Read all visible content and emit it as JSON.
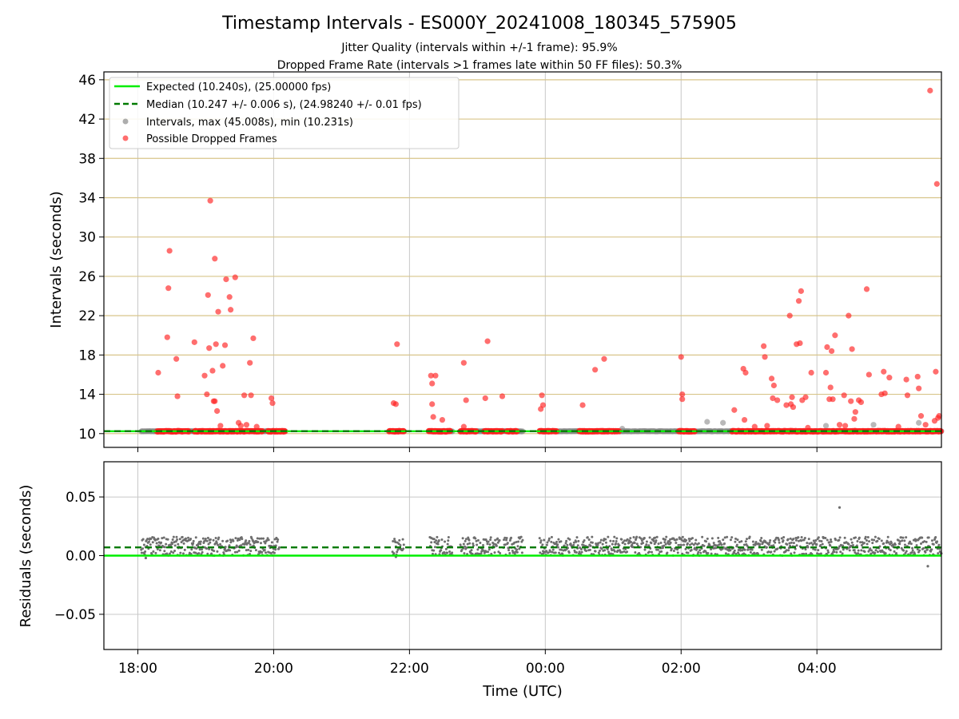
{
  "figure": {
    "title": "Timestamp Intervals - ES000Y_20241008_180345_575905",
    "subtitle1": "Jitter Quality (intervals within +/-1 frame): 95.9%",
    "subtitle2": "Dropped Frame Rate (intervals >1 frames late within 50 FF files): 50.3%",
    "xlabel": "Time (UTC)"
  },
  "chart_data": [
    {
      "type": "scatter",
      "panel": "top",
      "ylabel": "Intervals (seconds)",
      "xlim": [
        "17:30",
        "05:50"
      ],
      "ylim": [
        8.6,
        46.8
      ],
      "yticks": [
        10,
        14,
        18,
        22,
        26,
        30,
        34,
        38,
        42,
        46
      ],
      "xtick_labels": [
        "18:00",
        "20:00",
        "22:00",
        "00:00",
        "02:00",
        "04:00"
      ],
      "grid": "on",
      "hgrid_color": "#d8c58a",
      "legend_placement": "upper left",
      "legend": [
        {
          "label": "Expected (10.240s), (25.00000 fps)",
          "style": "solid-line",
          "color": "#00ee00"
        },
        {
          "label": "Median (10.247 +/- 0.006 s), (24.98240 +/- 0.01 fps)",
          "style": "dashed-line",
          "color": "#007a00"
        },
        {
          "label": "Intervals, max (45.008s), min (10.231s)",
          "style": "marker",
          "color": "#8a8a8a"
        },
        {
          "label": "Possible Dropped Frames",
          "style": "marker",
          "color": "#ff2020"
        }
      ],
      "expected": 10.24,
      "median": 10.247,
      "series": [
        {
          "name": "Intervals, max (45.008s), min (10.231s)",
          "color": "#8a8a8a",
          "segments": [
            [
              "18:03",
              "20:10"
            ],
            [
              "21:45",
              "21:55"
            ],
            [
              "22:18",
              "22:38"
            ],
            [
              "22:45",
              "23:20"
            ],
            [
              "23:23",
              "23:40"
            ],
            [
              "23:55",
              "05:50"
            ]
          ],
          "value": 10.24,
          "outliers": [
            {
              "x": "01:08",
              "y": 10.5
            },
            {
              "x": "02:23",
              "y": 11.2
            },
            {
              "x": "02:37",
              "y": 11.1
            },
            {
              "x": "04:08",
              "y": 10.8
            },
            {
              "x": "04:50",
              "y": 10.9
            },
            {
              "x": "05:30",
              "y": 11.1
            }
          ]
        },
        {
          "name": "Possible Dropped Frames",
          "color": "#ff2020",
          "base_value": 10.24,
          "base_segments": [
            [
              "18:17",
              "18:45"
            ],
            [
              "18:50",
              "19:50"
            ],
            [
              "19:55",
              "20:10"
            ],
            [
              "21:42",
              "21:55"
            ],
            [
              "22:17",
              "22:36"
            ],
            [
              "22:45",
              "22:59"
            ],
            [
              "23:06",
              "23:22"
            ],
            [
              "23:26",
              "23:35"
            ],
            [
              "23:55",
              "24:10"
            ],
            [
              "24:30",
              "25:05"
            ],
            [
              "25:58",
              "26:12"
            ],
            [
              "26:45",
              "29:50"
            ]
          ],
          "points": [
            {
              "x": "18:18",
              "y": 16.2
            },
            {
              "x": "18:26",
              "y": 19.8
            },
            {
              "x": "18:27",
              "y": 24.8
            },
            {
              "x": "18:28",
              "y": 28.6
            },
            {
              "x": "18:34",
              "y": 17.6
            },
            {
              "x": "18:35",
              "y": 13.8
            },
            {
              "x": "18:50",
              "y": 19.3
            },
            {
              "x": "18:59",
              "y": 15.9
            },
            {
              "x": "19:01",
              "y": 14.0
            },
            {
              "x": "19:02",
              "y": 24.1
            },
            {
              "x": "19:03",
              "y": 18.7
            },
            {
              "x": "19:04",
              "y": 33.7
            },
            {
              "x": "19:06",
              "y": 16.4
            },
            {
              "x": "19:07",
              "y": 13.3
            },
            {
              "x": "19:08",
              "y": 27.8
            },
            {
              "x": "19:08",
              "y": 13.3
            },
            {
              "x": "19:09",
              "y": 19.1
            },
            {
              "x": "19:10",
              "y": 12.3
            },
            {
              "x": "19:11",
              "y": 22.4
            },
            {
              "x": "19:13",
              "y": 10.8
            },
            {
              "x": "19:15",
              "y": 16.9
            },
            {
              "x": "19:17",
              "y": 19.0
            },
            {
              "x": "19:18",
              "y": 25.7
            },
            {
              "x": "19:21",
              "y": 23.9
            },
            {
              "x": "19:22",
              "y": 22.6
            },
            {
              "x": "19:26",
              "y": 25.9
            },
            {
              "x": "19:29",
              "y": 11.1
            },
            {
              "x": "19:31",
              "y": 10.8
            },
            {
              "x": "19:34",
              "y": 13.9
            },
            {
              "x": "19:36",
              "y": 10.9
            },
            {
              "x": "19:39",
              "y": 17.2
            },
            {
              "x": "19:40",
              "y": 13.9
            },
            {
              "x": "19:42",
              "y": 19.7
            },
            {
              "x": "19:45",
              "y": 10.7
            },
            {
              "x": "19:58",
              "y": 13.6
            },
            {
              "x": "19:59",
              "y": 13.1
            },
            {
              "x": "21:46",
              "y": 13.1
            },
            {
              "x": "21:48",
              "y": 13.0
            },
            {
              "x": "21:49",
              "y": 19.1
            },
            {
              "x": "22:19",
              "y": 15.9
            },
            {
              "x": "22:20",
              "y": 15.1
            },
            {
              "x": "22:20",
              "y": 13.0
            },
            {
              "x": "22:21",
              "y": 11.7
            },
            {
              "x": "22:23",
              "y": 15.9
            },
            {
              "x": "22:29",
              "y": 11.4
            },
            {
              "x": "22:48",
              "y": 17.2
            },
            {
              "x": "22:48",
              "y": 10.7
            },
            {
              "x": "22:50",
              "y": 13.4
            },
            {
              "x": "23:07",
              "y": 13.6
            },
            {
              "x": "23:09",
              "y": 19.4
            },
            {
              "x": "23:22",
              "y": 13.8
            },
            {
              "x": "23:56",
              "y": 12.5
            },
            {
              "x": "23:57",
              "y": 13.9
            },
            {
              "x": "23:58",
              "y": 12.9
            },
            {
              "x": "24:33",
              "y": 12.9
            },
            {
              "x": "24:44",
              "y": 16.5
            },
            {
              "x": "24:52",
              "y": 17.6
            },
            {
              "x": "26:00",
              "y": 17.8
            },
            {
              "x": "26:01",
              "y": 14.0
            },
            {
              "x": "26:01",
              "y": 13.5
            },
            {
              "x": "26:47",
              "y": 12.4
            },
            {
              "x": "26:55",
              "y": 16.6
            },
            {
              "x": "26:56",
              "y": 11.4
            },
            {
              "x": "26:57",
              "y": 16.2
            },
            {
              "x": "27:05",
              "y": 10.7
            },
            {
              "x": "27:13",
              "y": 18.9
            },
            {
              "x": "27:14",
              "y": 17.8
            },
            {
              "x": "27:16",
              "y": 10.8
            },
            {
              "x": "27:20",
              "y": 15.6
            },
            {
              "x": "27:21",
              "y": 13.6
            },
            {
              "x": "27:22",
              "y": 14.9
            },
            {
              "x": "27:25",
              "y": 13.4
            },
            {
              "x": "27:33",
              "y": 12.9
            },
            {
              "x": "27:36",
              "y": 22.0
            },
            {
              "x": "27:37",
              "y": 13.0
            },
            {
              "x": "27:38",
              "y": 13.7
            },
            {
              "x": "27:39",
              "y": 12.7
            },
            {
              "x": "27:42",
              "y": 19.1
            },
            {
              "x": "27:44",
              "y": 23.5
            },
            {
              "x": "27:45",
              "y": 19.2
            },
            {
              "x": "27:46",
              "y": 24.5
            },
            {
              "x": "27:47",
              "y": 13.4
            },
            {
              "x": "27:50",
              "y": 13.7
            },
            {
              "x": "27:52",
              "y": 10.6
            },
            {
              "x": "27:55",
              "y": 16.2
            },
            {
              "x": "28:08",
              "y": 16.2
            },
            {
              "x": "28:09",
              "y": 18.8
            },
            {
              "x": "28:11",
              "y": 13.5
            },
            {
              "x": "28:12",
              "y": 14.7
            },
            {
              "x": "28:13",
              "y": 18.4
            },
            {
              "x": "28:14",
              "y": 13.5
            },
            {
              "x": "28:16",
              "y": 20.0
            },
            {
              "x": "28:20",
              "y": 10.9
            },
            {
              "x": "28:24",
              "y": 13.9
            },
            {
              "x": "28:25",
              "y": 10.8
            },
            {
              "x": "28:28",
              "y": 22.0
            },
            {
              "x": "28:30",
              "y": 13.3
            },
            {
              "x": "28:31",
              "y": 18.6
            },
            {
              "x": "28:33",
              "y": 11.5
            },
            {
              "x": "28:34",
              "y": 12.2
            },
            {
              "x": "28:37",
              "y": 13.4
            },
            {
              "x": "28:39",
              "y": 13.2
            },
            {
              "x": "28:44",
              "y": 24.7
            },
            {
              "x": "28:46",
              "y": 16.0
            },
            {
              "x": "28:57",
              "y": 14.0
            },
            {
              "x": "28:59",
              "y": 16.3
            },
            {
              "x": "29:00",
              "y": 14.1
            },
            {
              "x": "29:04",
              "y": 15.7
            },
            {
              "x": "29:12",
              "y": 10.7
            },
            {
              "x": "29:19",
              "y": 15.5
            },
            {
              "x": "29:20",
              "y": 13.9
            },
            {
              "x": "29:29",
              "y": 15.8
            },
            {
              "x": "29:30",
              "y": 14.6
            },
            {
              "x": "29:32",
              "y": 11.8
            },
            {
              "x": "29:36",
              "y": 10.9
            },
            {
              "x": "29:40",
              "y": 44.9
            },
            {
              "x": "29:44",
              "y": 11.3
            },
            {
              "x": "29:45",
              "y": 16.3
            },
            {
              "x": "29:46",
              "y": 35.4
            },
            {
              "x": "29:47",
              "y": 11.6
            },
            {
              "x": "29:48",
              "y": 11.8
            }
          ]
        }
      ]
    },
    {
      "type": "scatter",
      "panel": "bottom",
      "ylabel": "Residuals (seconds)",
      "xlabel": "Time (UTC)",
      "xlim": [
        "17:30",
        "05:50"
      ],
      "ylim": [
        -0.08,
        0.08
      ],
      "yticks": [
        -0.05,
        0.0,
        0.05
      ],
      "ytick_labels": [
        "−0.05",
        "0.00",
        "0.05"
      ],
      "xtick_labels": [
        "18:00",
        "20:00",
        "22:00",
        "00:00",
        "02:00",
        "04:00"
      ],
      "grid": "on",
      "expected_residual": 0.0,
      "median_residual": 0.007,
      "series": [
        {
          "name": "Residuals",
          "color": "#6e6e6e",
          "segments": [
            [
              "18:03",
              "20:05"
            ],
            [
              "21:45",
              "21:55"
            ],
            [
              "22:18",
              "22:38"
            ],
            [
              "22:45",
              "23:20"
            ],
            [
              "23:23",
              "23:40"
            ],
            [
              "23:55",
              "05:50"
            ]
          ],
          "typical_range": [
            0.0,
            0.016
          ],
          "outliers": [
            {
              "x": "04:20",
              "y": 0.041
            },
            {
              "x": "05:38",
              "y": -0.009
            },
            {
              "x": "18:07",
              "y": -0.002
            },
            {
              "x": "21:48",
              "y": -0.001
            }
          ]
        }
      ]
    }
  ]
}
